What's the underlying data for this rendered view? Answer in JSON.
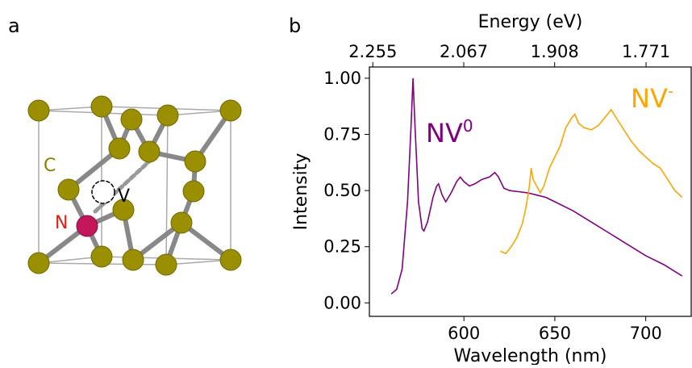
{
  "diagram": {
    "panel_label": "a",
    "atom_labels": [
      "C",
      "N",
      "V"
    ]
  },
  "chart_data": {
    "type": "line",
    "panel_label": "b",
    "xlabel": "Wavelength (nm)",
    "ylabel": "Intensity",
    "x2label": "Energy (eV)",
    "xlim": [
      548,
      725
    ],
    "ylim": [
      -0.06,
      1.05
    ],
    "xticks": [
      600,
      650,
      700
    ],
    "x2ticks": [
      2.255,
      2.067,
      1.908,
      1.771
    ],
    "yticks": [
      {
        "value": 0,
        "label": "0.00"
      },
      {
        "value": 0.25,
        "label": "0.25"
      },
      {
        "value": 0.5,
        "label": "0.50"
      },
      {
        "value": 0.75,
        "label": "0.75"
      },
      {
        "value": 1,
        "label": "1.00"
      }
    ],
    "series": [
      {
        "color": "#800080",
        "x": [
          560,
          563,
          566,
          569,
          571,
          572,
          573,
          575,
          577,
          578,
          580,
          583,
          585,
          586,
          588,
          590,
          593,
          596,
          598,
          600,
          603,
          606,
          610,
          614,
          617,
          619,
          622,
          625,
          630,
          635,
          640,
          645,
          650,
          660,
          670,
          680,
          690,
          700,
          710,
          720
        ],
        "values": [
          0.04,
          0.06,
          0.15,
          0.45,
          0.8,
          1.0,
          0.8,
          0.45,
          0.33,
          0.32,
          0.36,
          0.47,
          0.52,
          0.53,
          0.48,
          0.45,
          0.49,
          0.54,
          0.56,
          0.54,
          0.52,
          0.53,
          0.55,
          0.56,
          0.58,
          0.56,
          0.51,
          0.5,
          0.495,
          0.49,
          0.48,
          0.47,
          0.45,
          0.41,
          0.36,
          0.31,
          0.26,
          0.21,
          0.17,
          0.12
        ]
      },
      {
        "color": "#ffa500",
        "x": [
          620,
          623,
          626,
          629,
          632,
          634,
          636,
          637,
          638,
          640,
          642,
          644,
          647,
          650,
          653,
          656,
          659,
          661,
          663,
          666,
          670,
          674,
          678,
          681,
          684,
          688,
          692,
          696,
          700,
          704,
          708,
          712,
          716,
          720
        ],
        "values": [
          0.23,
          0.22,
          0.25,
          0.29,
          0.35,
          0.42,
          0.52,
          0.6,
          0.55,
          0.52,
          0.49,
          0.52,
          0.6,
          0.65,
          0.7,
          0.78,
          0.82,
          0.84,
          0.8,
          0.78,
          0.77,
          0.79,
          0.83,
          0.86,
          0.82,
          0.77,
          0.72,
          0.68,
          0.65,
          0.62,
          0.6,
          0.55,
          0.5,
          0.47
        ]
      }
    ],
    "annotations": [
      {
        "text": "NV",
        "sup": "0"
      },
      {
        "text": "NV",
        "sup": "-"
      }
    ]
  }
}
